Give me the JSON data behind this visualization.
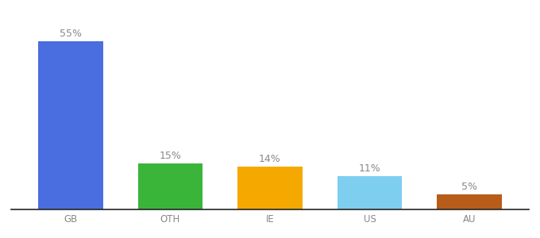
{
  "categories": [
    "GB",
    "OTH",
    "IE",
    "US",
    "AU"
  ],
  "values": [
    55,
    15,
    14,
    11,
    5
  ],
  "bar_colors": [
    "#4a6ee0",
    "#3ab53a",
    "#f5a800",
    "#7ecef0",
    "#b85c1a"
  ],
  "labels": [
    "55%",
    "15%",
    "14%",
    "11%",
    "5%"
  ],
  "background_color": "#ffffff",
  "label_fontsize": 9,
  "tick_fontsize": 8.5,
  "ylim": [
    0,
    63
  ],
  "bar_width": 0.65,
  "label_color": "#888888"
}
